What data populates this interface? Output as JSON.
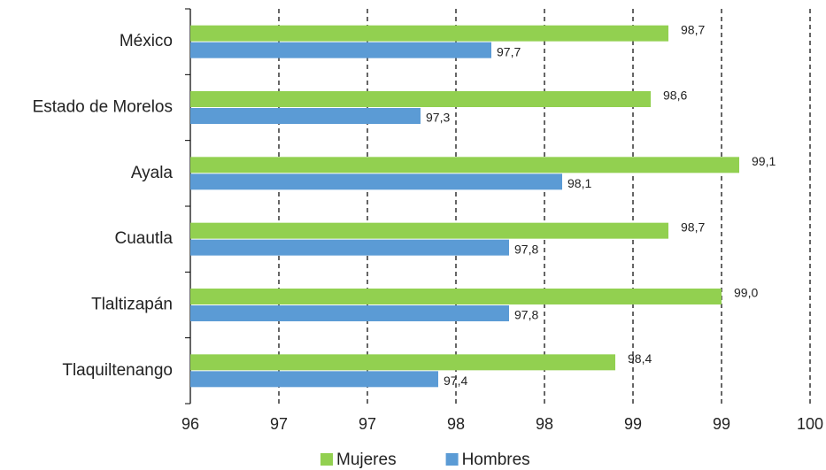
{
  "chart_data": {
    "type": "bar",
    "orientation": "horizontal",
    "categories": [
      "México",
      "Estado de Morelos",
      "Ayala",
      "Cuautla",
      "Tlaltizapán",
      "Tlaquiltenango"
    ],
    "series": [
      {
        "name": "Mujeres",
        "color": "#92d050",
        "values": [
          98.7,
          98.6,
          99.1,
          98.7,
          99.0,
          98.4
        ],
        "value_labels": [
          "98,7",
          "98,6",
          "99,1",
          "98,7",
          "99,0",
          "98,4"
        ]
      },
      {
        "name": "Hombres",
        "color": "#5b9bd5",
        "values": [
          97.7,
          97.3,
          98.1,
          97.8,
          97.8,
          97.4
        ],
        "value_labels": [
          "97,7",
          "97,3",
          "98,1",
          "97,8",
          "97,8",
          "97,4"
        ]
      }
    ],
    "xlim": [
      96,
      99.5
    ],
    "xticks": [
      96,
      {
        "value": 96.5,
        "label": "97"
      },
      97,
      {
        "value": 97.5,
        "label": "98"
      },
      98,
      {
        "value": 98.5,
        "label": "99"
      },
      99,
      {
        "value": 99.5,
        "label": "100"
      }
    ],
    "grid": true,
    "legend": "bottom"
  }
}
